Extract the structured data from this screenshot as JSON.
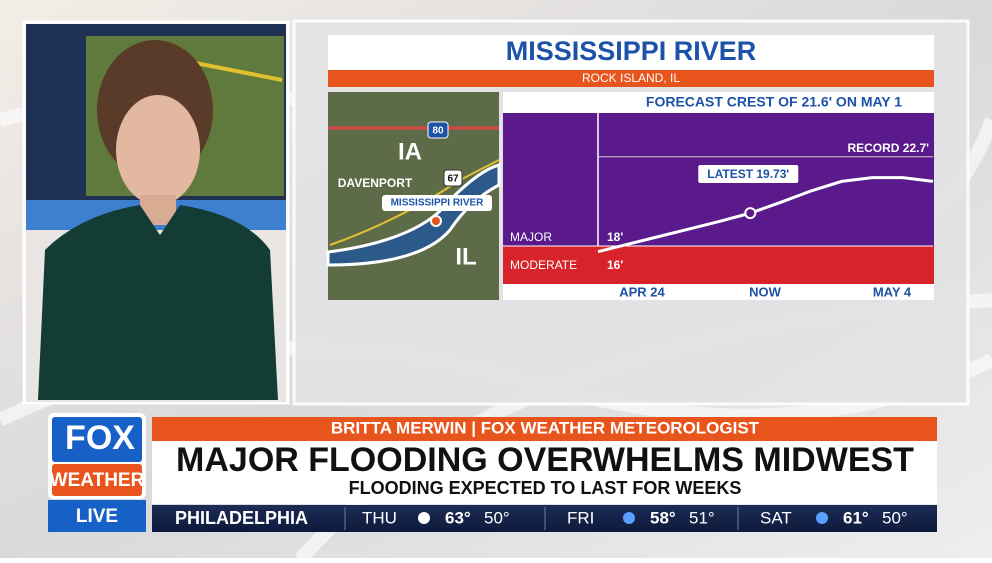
{
  "graphic": {
    "title": "MISSISSIPPI RIVER",
    "location": "ROCK ISLAND, IL",
    "map": {
      "state_left": "IA",
      "city": "DAVENPORT",
      "river": "MISSISSIPPI RIVER",
      "state_right": "IL",
      "interstate": "80",
      "highway": "67"
    },
    "hydrograph": {
      "heading": "FORECAST CREST OF 21.6' ON MAY 1",
      "values": [
        17.7,
        18.1,
        18.5,
        18.9,
        19.3,
        19.73,
        20.3,
        20.9,
        21.4,
        21.6,
        21.6,
        21.4
      ],
      "ylim": [
        16,
        25
      ],
      "stages": [
        {
          "name": "MAJOR",
          "value": 18,
          "label": "18'"
        },
        {
          "name": "MODERATE",
          "value": 16,
          "label": "16'"
        }
      ],
      "latest": {
        "label": "LATEST 19.73'",
        "value": 19.73
      },
      "record": {
        "label": "RECORD 22.7'",
        "value": 22.7
      },
      "x_labels": [
        "APR 24",
        "NOW",
        "MAY 4"
      ]
    }
  },
  "lower_third": {
    "logo_top": "FOX",
    "logo_bottom": "WEATHER",
    "live": "LIVE",
    "presenter": "BRITTA MERWIN | FOX WEATHER METEOROLOGIST",
    "headline": "MAJOR FLOODING OVERWHELMS MIDWEST",
    "subheadline": "FLOODING EXPECTED TO LAST FOR WEEKS",
    "ticker": {
      "city": "PHILADELPHIA",
      "days": [
        {
          "day": "THU",
          "high": "63°",
          "low": "50°"
        },
        {
          "day": "FRI",
          "high": "58°",
          "low": "51°"
        },
        {
          "day": "SAT",
          "high": "61°",
          "low": "50°"
        }
      ]
    }
  }
}
